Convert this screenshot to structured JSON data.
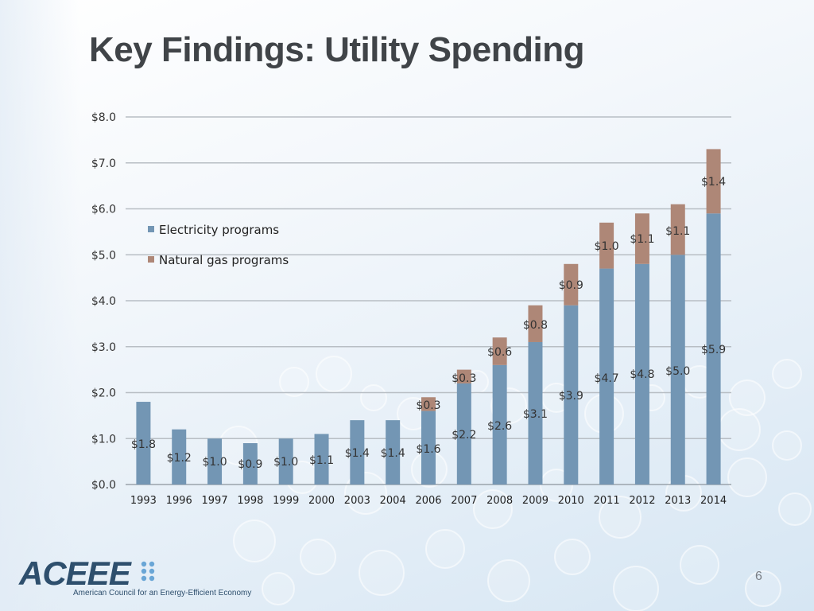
{
  "slide": {
    "title": "Key Findings: Utility Spending",
    "page_number": "6"
  },
  "logo": {
    "wordmark": "ACEEE",
    "tagline": "American Council for an Energy-Efficient Economy"
  },
  "chart_data": {
    "type": "bar",
    "stacked": true,
    "categories": [
      "1993",
      "1996",
      "1997",
      "1998",
      "1999",
      "2000",
      "2003",
      "2004",
      "2006",
      "2007",
      "2008",
      "2009",
      "2010",
      "2011",
      "2012",
      "2013",
      "2014"
    ],
    "series": [
      {
        "name": "Electricity programs",
        "color": "#7396b4",
        "values": [
          1.8,
          1.2,
          1.0,
          0.9,
          1.0,
          1.1,
          1.4,
          1.4,
          1.6,
          2.2,
          2.6,
          3.1,
          3.9,
          4.7,
          4.8,
          5.0,
          5.9
        ],
        "labels": [
          "$1.8",
          "$1.2",
          "$1.0",
          "$0.9",
          "$1.0",
          "$1.1",
          "$1.4",
          "$1.4",
          "$1.6",
          "$2.2",
          "$2.6",
          "$3.1",
          "$3.9",
          "$4.7",
          "$4.8",
          "$5.0",
          "$5.9"
        ]
      },
      {
        "name": "Natural gas programs",
        "color": "#ae8777",
        "values": [
          0,
          0,
          0,
          0,
          0,
          0,
          0,
          0,
          0.3,
          0.3,
          0.6,
          0.8,
          0.9,
          1.0,
          1.1,
          1.1,
          1.4
        ],
        "labels": [
          "",
          "",
          "",
          "",
          "",
          "",
          "",
          "",
          "$0.3",
          "$0.3",
          "$0.6",
          "$0.8",
          "$0.9",
          "$1.0",
          "$1.1",
          "$1.1",
          "$1.4"
        ]
      }
    ],
    "ylim": [
      0,
      8
    ],
    "yticks": [
      "$0.0",
      "$1.0",
      "$2.0",
      "$3.0",
      "$4.0",
      "$5.0",
      "$6.0",
      "$7.0",
      "$8.0"
    ],
    "grid": true,
    "legend": "top-left",
    "title": "",
    "xlabel": "",
    "ylabel": ""
  }
}
